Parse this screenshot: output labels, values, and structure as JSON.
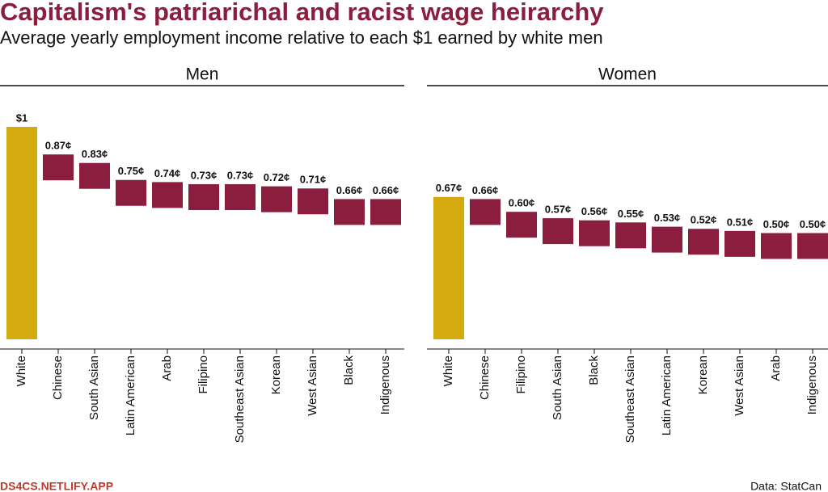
{
  "title": "Capitalism's patriarichal and racist wage heirarchy",
  "subtitle": "Average yearly employment income relative to each $1 earned by white men",
  "credit": "DS4CS.NETLIFY.APP",
  "source": "Data: StatCan",
  "chart_data": [
    {
      "type": "floating_bar",
      "title": "Men",
      "categories": [
        "White",
        "Chinese",
        "South Asian",
        "Latin American",
        "Arab",
        "Filipino",
        "Southeast Asian",
        "Korean",
        "West Asian",
        "Black",
        "Indigenous"
      ],
      "values": [
        1,
        0.87,
        0.83,
        0.75,
        0.74,
        0.73,
        0.73,
        0.72,
        0.71,
        0.66,
        0.66
      ],
      "value_labels": [
        "$1",
        "0.87¢",
        "0.83¢",
        "0.75¢",
        "0.74¢",
        "0.73¢",
        "0.73¢",
        "0.72¢",
        "0.71¢",
        "0.66¢",
        "0.66¢"
      ],
      "colors": [
        "#d4aa0f",
        "#8b1e3f",
        "#8b1e3f",
        "#8b1e3f",
        "#8b1e3f",
        "#8b1e3f",
        "#8b1e3f",
        "#8b1e3f",
        "#8b1e3f",
        "#8b1e3f",
        "#8b1e3f"
      ],
      "ylim": [
        0,
        1
      ]
    },
    {
      "type": "floating_bar",
      "title": "Women",
      "categories": [
        "White",
        "Chinese",
        "Filipino",
        "South Asian",
        "Black",
        "Southeast Asian",
        "Latin American",
        "Korean",
        "West Asian",
        "Arab",
        "Indigenous"
      ],
      "values": [
        0.67,
        0.66,
        0.6,
        0.57,
        0.56,
        0.55,
        0.53,
        0.52,
        0.51,
        0.5,
        0.5
      ],
      "value_labels": [
        "0.67¢",
        "0.66¢",
        "0.60¢",
        "0.57¢",
        "0.56¢",
        "0.55¢",
        "0.53¢",
        "0.52¢",
        "0.51¢",
        "0.50¢",
        "0.50¢"
      ],
      "colors": [
        "#d4aa0f",
        "#8b1e3f",
        "#8b1e3f",
        "#8b1e3f",
        "#8b1e3f",
        "#8b1e3f",
        "#8b1e3f",
        "#8b1e3f",
        "#8b1e3f",
        "#8b1e3f",
        "#8b1e3f"
      ],
      "ylim": [
        0,
        1
      ]
    }
  ]
}
